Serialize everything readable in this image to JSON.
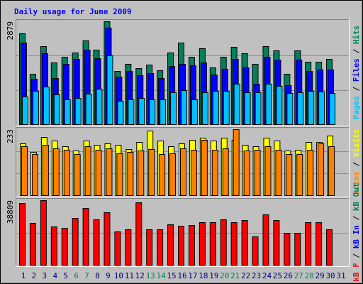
{
  "title": "Daily usage for June 2009",
  "separator": "/",
  "categories": [
    "1",
    "2",
    "3",
    "4",
    "5",
    "6",
    "7",
    "8",
    "9",
    "10",
    "11",
    "12",
    "13",
    "14",
    "15",
    "16",
    "17",
    "18",
    "19",
    "20",
    "21",
    "22",
    "23",
    "24",
    "25",
    "26",
    "27",
    "28",
    "29",
    "30",
    "31"
  ],
  "category_colors": [
    "#000080",
    "#000080",
    "#000080",
    "#000080",
    "#000080",
    "#00805c",
    "#00805c",
    "#000080",
    "#000080",
    "#000080",
    "#000080",
    "#000080",
    "#00805c",
    "#00805c",
    "#000080",
    "#000080",
    "#000080",
    "#000080",
    "#000080",
    "#00805c",
    "#00805c",
    "#000080",
    "#000080",
    "#000080",
    "#000080",
    "#000080",
    "#00805c",
    "#00805c",
    "#000080",
    "#000080",
    "#000080"
  ],
  "chart_data": [
    {
      "type": "bar",
      "ylim": [
        0,
        2879
      ],
      "yticks": [
        2879
      ],
      "series": [
        {
          "name": "Hits",
          "color": "#00805c",
          "values": [
            2542,
            1410,
            2184,
            1728,
            1887,
            2006,
            2343,
            2085,
            2879,
            1489,
            1688,
            1569,
            1668,
            1509,
            2006,
            2284,
            1887,
            2125,
            1589,
            1887,
            2165,
            1986,
            1688,
            2184,
            2065,
            1410,
            2065,
            1748,
            1748,
            1827,
            null
          ]
        },
        {
          "name": "Files",
          "color": "#0000ff",
          "values": [
            2284,
            1271,
            1986,
            1291,
            1688,
            1827,
            2085,
            1847,
            2701,
            1331,
            1489,
            1370,
            1430,
            1291,
            1628,
            1688,
            1648,
            1728,
            1390,
            1549,
            1827,
            1589,
            1132,
            1887,
            1807,
            1092,
            1807,
            1489,
            1529,
            1529,
            null
          ]
        },
        {
          "name": "Pages",
          "color": "#00c0ff",
          "values": [
            775,
            933,
            1053,
            834,
            695,
            735,
            854,
            993,
            1927,
            655,
            695,
            735,
            695,
            695,
            894,
            953,
            695,
            894,
            933,
            933,
            1132,
            894,
            894,
            1132,
            1072,
            874,
            894,
            933,
            914,
            874,
            null
          ]
        }
      ]
    },
    {
      "type": "bar",
      "ylim": [
        0,
        233
      ],
      "yticks": [
        233
      ],
      "series": [
        {
          "name": "Visits",
          "color": "#ffff00",
          "values": [
            184,
            154,
            205,
            192,
            174,
            159,
            192,
            177,
            182,
            179,
            164,
            187,
            228,
            192,
            172,
            184,
            195,
            202,
            192,
            202,
            196,
            177,
            172,
            202,
            192,
            159,
            161,
            187,
            189,
            210,
            null
          ]
        },
        {
          "name": "Sites",
          "color": "#ff8000",
          "values": [
            172,
            146,
            177,
            166,
            161,
            146,
            174,
            161,
            166,
            148,
            154,
            159,
            164,
            146,
            148,
            166,
            161,
            195,
            161,
            166,
            233,
            159,
            161,
            172,
            161,
            146,
            146,
            161,
            182,
            174,
            null
          ]
        }
      ]
    },
    {
      "type": "bar",
      "ylim": [
        0,
        38809
      ],
      "yticks": [
        38809
      ],
      "series": [
        {
          "name": "kB F",
          "color": "#ff0000",
          "values": [
            37045,
            25138,
            38809,
            22933,
            22051,
            28224,
            33958,
            27343,
            31753,
            19846,
            21169,
            37486,
            21169,
            21169,
            24256,
            23374,
            23815,
            25579,
            25579,
            27343,
            25579,
            26902,
            17199,
            30430,
            26902,
            19404,
            19404,
            25579,
            25579,
            21169,
            null
          ]
        }
      ],
      "legend": [
        {
          "name": "kB In",
          "color": "#0000ff"
        },
        {
          "name": "kB Out",
          "color": "#00805c"
        }
      ]
    }
  ]
}
